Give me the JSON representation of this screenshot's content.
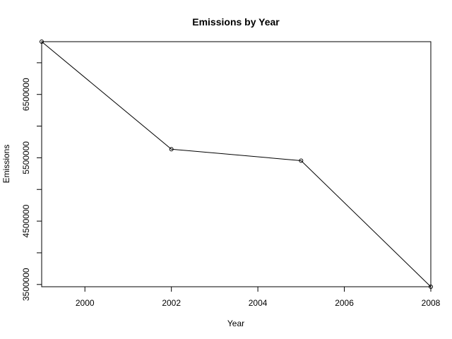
{
  "chart_data": {
    "type": "line",
    "title": "Emissions by Year",
    "xlabel": "Year",
    "ylabel": "Emissions",
    "x": [
      1999,
      2002,
      2005,
      2008
    ],
    "series": [
      {
        "values": [
          7332967,
          5635780,
          5454703,
          3464206
        ]
      }
    ],
    "xlim": [
      1999,
      2008
    ],
    "ylim": [
      3464206,
      7332967
    ],
    "x_ticks": [
      2000,
      2002,
      2004,
      2006,
      2008
    ],
    "x_tick_labels": [
      "2000",
      "2002",
      "2004",
      "2006",
      "2008"
    ],
    "y_ticks": [
      3500000,
      4000000,
      4500000,
      5000000,
      5500000,
      6000000,
      6500000,
      7000000
    ],
    "y_tick_labels": [
      "3500000",
      "",
      "4500000",
      "",
      "5500000",
      "",
      "6500000",
      ""
    ],
    "markers": "open-circle",
    "grid": false,
    "colors": {
      "line": "#000000",
      "background": "#ffffff"
    }
  }
}
